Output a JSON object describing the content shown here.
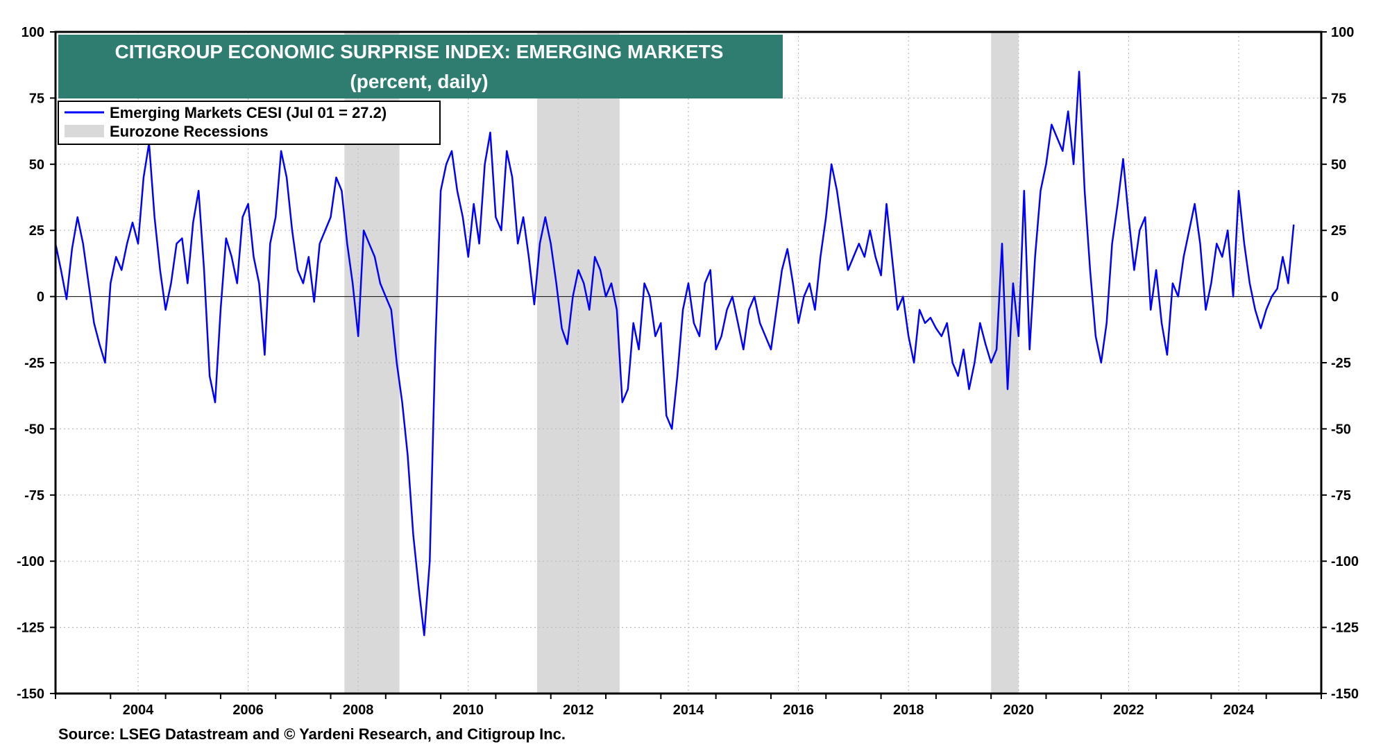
{
  "chart_data": {
    "type": "line",
    "title": "CITIGROUP ECONOMIC SURPRISE INDEX: EMERGING MARKETS",
    "subtitle": "(percent, daily)",
    "xlabel": "",
    "ylabel": "",
    "xlim": [
      2003.0,
      2026.0
    ],
    "ylim": [
      -150,
      100
    ],
    "x_ticks": [
      "2004",
      "2006",
      "2008",
      "2010",
      "2012",
      "2014",
      "2016",
      "2018",
      "2020",
      "2022",
      "2024"
    ],
    "y_ticks": [
      "100",
      "75",
      "50",
      "25",
      "0",
      "-25",
      "-50",
      "-75",
      "-100",
      "-125",
      "-150"
    ],
    "grid": true,
    "legend_position": "top-left",
    "colors": {
      "series": "#0000ff",
      "recession": "#d9d9d9",
      "title_bg": "#2e7d70"
    },
    "series": [
      {
        "name": "Emerging Markets CESI (Jul 01 = 27.2)",
        "points": [
          [
            2003.0,
            20
          ],
          [
            2003.1,
            10
          ],
          [
            2003.2,
            -1
          ],
          [
            2003.3,
            18
          ],
          [
            2003.4,
            30
          ],
          [
            2003.5,
            20
          ],
          [
            2003.6,
            5
          ],
          [
            2003.7,
            -10
          ],
          [
            2003.8,
            -18
          ],
          [
            2003.9,
            -25
          ],
          [
            2004.0,
            5
          ],
          [
            2004.1,
            15
          ],
          [
            2004.2,
            10
          ],
          [
            2004.3,
            20
          ],
          [
            2004.4,
            28
          ],
          [
            2004.5,
            20
          ],
          [
            2004.6,
            45
          ],
          [
            2004.7,
            58
          ],
          [
            2004.8,
            30
          ],
          [
            2004.9,
            10
          ],
          [
            2005.0,
            -5
          ],
          [
            2005.1,
            5
          ],
          [
            2005.2,
            20
          ],
          [
            2005.3,
            22
          ],
          [
            2005.4,
            5
          ],
          [
            2005.5,
            28
          ],
          [
            2005.6,
            40
          ],
          [
            2005.7,
            10
          ],
          [
            2005.8,
            -30
          ],
          [
            2005.9,
            -40
          ],
          [
            2006.0,
            -5
          ],
          [
            2006.1,
            22
          ],
          [
            2006.2,
            15
          ],
          [
            2006.3,
            5
          ],
          [
            2006.4,
            30
          ],
          [
            2006.5,
            35
          ],
          [
            2006.6,
            15
          ],
          [
            2006.7,
            5
          ],
          [
            2006.8,
            -22
          ],
          [
            2006.9,
            20
          ],
          [
            2007.0,
            30
          ],
          [
            2007.1,
            55
          ],
          [
            2007.2,
            45
          ],
          [
            2007.3,
            25
          ],
          [
            2007.4,
            10
          ],
          [
            2007.5,
            5
          ],
          [
            2007.6,
            15
          ],
          [
            2007.7,
            -2
          ],
          [
            2007.8,
            20
          ],
          [
            2007.9,
            25
          ],
          [
            2008.0,
            30
          ],
          [
            2008.1,
            45
          ],
          [
            2008.2,
            40
          ],
          [
            2008.3,
            20
          ],
          [
            2008.4,
            5
          ],
          [
            2008.5,
            -15
          ],
          [
            2008.6,
            25
          ],
          [
            2008.7,
            20
          ],
          [
            2008.8,
            15
          ],
          [
            2008.9,
            5
          ],
          [
            2009.0,
            0
          ],
          [
            2009.1,
            -5
          ],
          [
            2009.2,
            -25
          ],
          [
            2009.3,
            -40
          ],
          [
            2009.4,
            -60
          ],
          [
            2009.5,
            -90
          ],
          [
            2009.6,
            -110
          ],
          [
            2009.7,
            -128
          ],
          [
            2009.8,
            -100
          ],
          [
            2009.9,
            -20
          ],
          [
            2010.0,
            40
          ],
          [
            2010.1,
            50
          ],
          [
            2010.2,
            55
          ],
          [
            2010.3,
            40
          ],
          [
            2010.4,
            30
          ],
          [
            2010.5,
            15
          ],
          [
            2010.6,
            35
          ],
          [
            2010.7,
            20
          ],
          [
            2010.8,
            50
          ],
          [
            2010.9,
            62
          ],
          [
            2011.0,
            30
          ],
          [
            2011.1,
            25
          ],
          [
            2011.2,
            55
          ],
          [
            2011.3,
            45
          ],
          [
            2011.4,
            20
          ],
          [
            2011.5,
            30
          ],
          [
            2011.6,
            15
          ],
          [
            2011.7,
            -3
          ],
          [
            2011.8,
            20
          ],
          [
            2011.9,
            30
          ],
          [
            2012.0,
            20
          ],
          [
            2012.1,
            5
          ],
          [
            2012.2,
            -12
          ],
          [
            2012.3,
            -18
          ],
          [
            2012.4,
            0
          ],
          [
            2012.5,
            10
          ],
          [
            2012.6,
            5
          ],
          [
            2012.7,
            -5
          ],
          [
            2012.8,
            15
          ],
          [
            2012.9,
            10
          ],
          [
            2013.0,
            0
          ],
          [
            2013.1,
            5
          ],
          [
            2013.2,
            -5
          ],
          [
            2013.3,
            -40
          ],
          [
            2013.4,
            -35
          ],
          [
            2013.5,
            -10
          ],
          [
            2013.6,
            -20
          ],
          [
            2013.7,
            5
          ],
          [
            2013.8,
            0
          ],
          [
            2013.9,
            -15
          ],
          [
            2014.0,
            -10
          ],
          [
            2014.1,
            -45
          ],
          [
            2014.2,
            -50
          ],
          [
            2014.3,
            -30
          ],
          [
            2014.4,
            -5
          ],
          [
            2014.5,
            5
          ],
          [
            2014.6,
            -10
          ],
          [
            2014.7,
            -15
          ],
          [
            2014.8,
            5
          ],
          [
            2014.9,
            10
          ],
          [
            2015.0,
            -20
          ],
          [
            2015.1,
            -15
          ],
          [
            2015.2,
            -5
          ],
          [
            2015.3,
            0
          ],
          [
            2015.4,
            -10
          ],
          [
            2015.5,
            -20
          ],
          [
            2015.6,
            -5
          ],
          [
            2015.7,
            0
          ],
          [
            2015.8,
            -10
          ],
          [
            2015.9,
            -15
          ],
          [
            2016.0,
            -20
          ],
          [
            2016.1,
            -5
          ],
          [
            2016.2,
            10
          ],
          [
            2016.3,
            18
          ],
          [
            2016.4,
            5
          ],
          [
            2016.5,
            -10
          ],
          [
            2016.6,
            0
          ],
          [
            2016.7,
            5
          ],
          [
            2016.8,
            -5
          ],
          [
            2016.9,
            15
          ],
          [
            2017.0,
            30
          ],
          [
            2017.1,
            50
          ],
          [
            2017.2,
            40
          ],
          [
            2017.3,
            25
          ],
          [
            2017.4,
            10
          ],
          [
            2017.5,
            15
          ],
          [
            2017.6,
            20
          ],
          [
            2017.7,
            15
          ],
          [
            2017.8,
            25
          ],
          [
            2017.9,
            15
          ],
          [
            2018.0,
            8
          ],
          [
            2018.1,
            35
          ],
          [
            2018.2,
            15
          ],
          [
            2018.3,
            -5
          ],
          [
            2018.4,
            0
          ],
          [
            2018.5,
            -15
          ],
          [
            2018.6,
            -25
          ],
          [
            2018.7,
            -5
          ],
          [
            2018.8,
            -10
          ],
          [
            2018.9,
            -8
          ],
          [
            2019.0,
            -12
          ],
          [
            2019.1,
            -15
          ],
          [
            2019.2,
            -10
          ],
          [
            2019.3,
            -25
          ],
          [
            2019.4,
            -30
          ],
          [
            2019.5,
            -20
          ],
          [
            2019.6,
            -35
          ],
          [
            2019.7,
            -25
          ],
          [
            2019.8,
            -10
          ],
          [
            2019.9,
            -18
          ],
          [
            2020.0,
            -25
          ],
          [
            2020.1,
            -20
          ],
          [
            2020.2,
            20
          ],
          [
            2020.3,
            -35
          ],
          [
            2020.4,
            5
          ],
          [
            2020.5,
            -15
          ],
          [
            2020.6,
            40
          ],
          [
            2020.7,
            -20
          ],
          [
            2020.8,
            15
          ],
          [
            2020.9,
            40
          ],
          [
            2021.0,
            50
          ],
          [
            2021.1,
            65
          ],
          [
            2021.2,
            60
          ],
          [
            2021.3,
            55
          ],
          [
            2021.4,
            70
          ],
          [
            2021.5,
            50
          ],
          [
            2021.6,
            85
          ],
          [
            2021.7,
            40
          ],
          [
            2021.8,
            10
          ],
          [
            2021.9,
            -15
          ],
          [
            2022.0,
            -25
          ],
          [
            2022.1,
            -10
          ],
          [
            2022.2,
            20
          ],
          [
            2022.3,
            35
          ],
          [
            2022.4,
            52
          ],
          [
            2022.5,
            30
          ],
          [
            2022.6,
            10
          ],
          [
            2022.7,
            25
          ],
          [
            2022.8,
            30
          ],
          [
            2022.9,
            -5
          ],
          [
            2023.0,
            10
          ],
          [
            2023.1,
            -10
          ],
          [
            2023.2,
            -22
          ],
          [
            2023.3,
            5
          ],
          [
            2023.4,
            0
          ],
          [
            2023.5,
            15
          ],
          [
            2023.6,
            25
          ],
          [
            2023.7,
            35
          ],
          [
            2023.8,
            20
          ],
          [
            2023.9,
            -5
          ],
          [
            2024.0,
            5
          ],
          [
            2024.1,
            20
          ],
          [
            2024.2,
            15
          ],
          [
            2024.3,
            25
          ],
          [
            2024.4,
            0
          ],
          [
            2024.5,
            40
          ],
          [
            2024.6,
            20
          ],
          [
            2024.7,
            5
          ],
          [
            2024.8,
            -5
          ],
          [
            2024.9,
            -12
          ],
          [
            2025.0,
            -5
          ],
          [
            2025.1,
            0
          ],
          [
            2025.2,
            3
          ],
          [
            2025.3,
            15
          ],
          [
            2025.4,
            5
          ],
          [
            2025.5,
            27.2
          ]
        ]
      }
    ],
    "recessions": [
      {
        "name": "Eurozone Recessions",
        "start": 2008.25,
        "end": 2009.25
      },
      {
        "start": 2011.75,
        "end": 2013.25
      },
      {
        "start": 2020.0,
        "end": 2020.5
      }
    ]
  },
  "source": "Source: LSEG Datastream and © Yardeni Research, and Citigroup Inc."
}
